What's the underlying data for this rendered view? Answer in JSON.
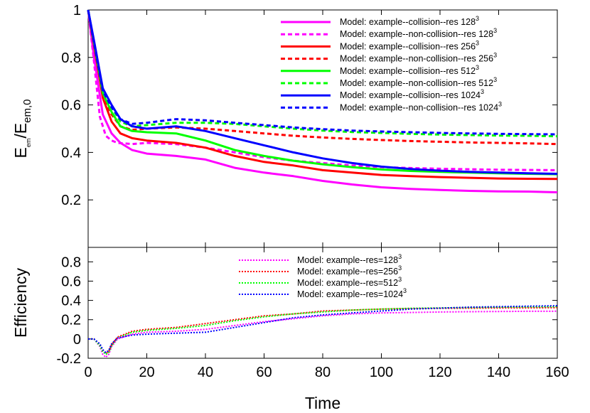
{
  "chart_data": [
    {
      "type": "line",
      "xlabel": "Time",
      "ylabel": "E_em/E_em,0",
      "ylabel_main": "E",
      "ylabel_sub1": "em",
      "ylabel_mid": "/E",
      "ylabel_sub2": "em,0",
      "xlim": [
        0,
        160
      ],
      "ylim": [
        0,
        1
      ],
      "xticks": [
        "0",
        "20",
        "40",
        "60",
        "80",
        "100",
        "120",
        "140",
        "160"
      ],
      "yticks": [
        "0.2",
        "0.4",
        "0.6",
        "0.8",
        "1"
      ],
      "ytick_values": [
        0.2,
        0.4,
        0.6,
        0.8,
        1.0
      ],
      "legend_position": "top-right",
      "series": [
        {
          "name": "Model: example--collision--res 128",
          "sup": "3",
          "color": "#ff00ff",
          "dash": "solid",
          "x": [
            0,
            2,
            5,
            8,
            11,
            15,
            20,
            30,
            40,
            50,
            60,
            70,
            80,
            90,
            100,
            110,
            120,
            130,
            140,
            150,
            160
          ],
          "y": [
            1.0,
            0.8,
            0.56,
            0.48,
            0.44,
            0.41,
            0.395,
            0.385,
            0.37,
            0.335,
            0.315,
            0.3,
            0.28,
            0.265,
            0.253,
            0.246,
            0.242,
            0.238,
            0.236,
            0.235,
            0.232
          ]
        },
        {
          "name": "Model: example--non-collision--res 128",
          "sup": "3",
          "color": "#ff00ff",
          "dash": "dashed",
          "x": [
            0,
            2,
            4,
            6,
            8,
            10,
            15,
            20,
            30,
            40,
            50,
            60,
            70,
            80,
            90,
            100,
            110,
            120,
            130,
            140,
            150,
            160
          ],
          "y": [
            1.0,
            0.78,
            0.55,
            0.47,
            0.45,
            0.44,
            0.435,
            0.44,
            0.435,
            0.42,
            0.4,
            0.38,
            0.365,
            0.355,
            0.345,
            0.338,
            0.334,
            0.331,
            0.329,
            0.327,
            0.326,
            0.325
          ]
        },
        {
          "name": "Model: example--collision--res 256",
          "sup": "3",
          "color": "#ff0000",
          "dash": "solid",
          "x": [
            0,
            2,
            5,
            8,
            11,
            15,
            20,
            30,
            40,
            50,
            60,
            70,
            80,
            90,
            100,
            110,
            120,
            130,
            140,
            150,
            160
          ],
          "y": [
            1.0,
            0.85,
            0.63,
            0.53,
            0.48,
            0.46,
            0.45,
            0.44,
            0.42,
            0.385,
            0.36,
            0.345,
            0.325,
            0.315,
            0.305,
            0.3,
            0.296,
            0.293,
            0.29,
            0.289,
            0.288
          ]
        },
        {
          "name": "Model: example--non-collision--res 256",
          "sup": "3",
          "color": "#ff0000",
          "dash": "dashed",
          "x": [
            0,
            2,
            5,
            8,
            11,
            15,
            20,
            30,
            40,
            50,
            60,
            70,
            80,
            90,
            100,
            110,
            120,
            130,
            140,
            150,
            160
          ],
          "y": [
            1.0,
            0.85,
            0.64,
            0.56,
            0.51,
            0.495,
            0.5,
            0.505,
            0.5,
            0.49,
            0.48,
            0.47,
            0.463,
            0.457,
            0.452,
            0.448,
            0.445,
            0.442,
            0.44,
            0.438,
            0.435
          ]
        },
        {
          "name": "Model: example--collision--res 512",
          "sup": "3",
          "color": "#00ff00",
          "dash": "solid",
          "x": [
            0,
            2,
            5,
            8,
            11,
            15,
            20,
            30,
            40,
            50,
            60,
            70,
            80,
            90,
            100,
            110,
            120,
            130,
            140,
            150,
            160
          ],
          "y": [
            1.0,
            0.86,
            0.65,
            0.57,
            0.51,
            0.49,
            0.485,
            0.48,
            0.45,
            0.41,
            0.385,
            0.365,
            0.35,
            0.338,
            0.328,
            0.322,
            0.318,
            0.315,
            0.312,
            0.31,
            0.308
          ]
        },
        {
          "name": "Model: example--non-collision--res 512",
          "sup": "3",
          "color": "#00ff00",
          "dash": "dashed",
          "x": [
            0,
            2,
            5,
            8,
            11,
            15,
            20,
            30,
            40,
            50,
            60,
            70,
            80,
            90,
            100,
            110,
            120,
            130,
            140,
            150,
            160
          ],
          "y": [
            1.0,
            0.86,
            0.66,
            0.59,
            0.53,
            0.51,
            0.515,
            0.525,
            0.525,
            0.52,
            0.51,
            0.5,
            0.492,
            0.486,
            0.482,
            0.478,
            0.475,
            0.473,
            0.471,
            0.47,
            0.468
          ]
        },
        {
          "name": "Model: example--collision--res 1024",
          "sup": "3",
          "color": "#0000ff",
          "dash": "solid",
          "x": [
            0,
            2,
            5,
            8,
            11,
            15,
            20,
            30,
            40,
            50,
            60,
            70,
            80,
            90,
            100,
            110,
            120,
            130,
            140,
            150,
            160
          ],
          "y": [
            1.0,
            0.87,
            0.67,
            0.6,
            0.54,
            0.51,
            0.5,
            0.51,
            0.49,
            0.46,
            0.43,
            0.4,
            0.375,
            0.355,
            0.34,
            0.33,
            0.323,
            0.318,
            0.315,
            0.312,
            0.31
          ]
        },
        {
          "name": "Model: example--non-collision--res 1024",
          "sup": "3",
          "color": "#0000ff",
          "dash": "dashed",
          "x": [
            0,
            2,
            5,
            8,
            11,
            15,
            20,
            30,
            40,
            50,
            60,
            70,
            80,
            90,
            100,
            110,
            120,
            130,
            140,
            150,
            160
          ],
          "y": [
            1.0,
            0.86,
            0.66,
            0.59,
            0.54,
            0.52,
            0.525,
            0.54,
            0.535,
            0.525,
            0.515,
            0.505,
            0.498,
            0.492,
            0.488,
            0.485,
            0.482,
            0.48,
            0.478,
            0.477,
            0.476
          ]
        }
      ]
    },
    {
      "type": "line",
      "xlabel": "Time",
      "ylabel": "Efficiency",
      "xlim": [
        0,
        160
      ],
      "ylim": [
        -0.2,
        0.95
      ],
      "xticks": [
        "0",
        "20",
        "40",
        "60",
        "80",
        "100",
        "120",
        "140",
        "160"
      ],
      "yticks": [
        "-0.2",
        "0",
        "0.2",
        "0.4",
        "0.6",
        "0.8"
      ],
      "ytick_values": [
        -0.2,
        0.0,
        0.2,
        0.4,
        0.6,
        0.8
      ],
      "legend_position": "top-center",
      "series": [
        {
          "name": "Model: example--res=128",
          "sup": "3",
          "color": "#ff00ff",
          "dash": "dotted",
          "x": [
            0,
            2,
            4,
            5,
            6,
            7,
            8,
            10,
            15,
            20,
            30,
            40,
            50,
            60,
            70,
            80,
            90,
            100,
            110,
            120,
            130,
            140,
            150,
            160
          ],
          "y": [
            0.0,
            0.0,
            -0.08,
            -0.16,
            -0.19,
            -0.16,
            -0.08,
            0.0,
            0.05,
            0.07,
            0.08,
            0.1,
            0.14,
            0.18,
            0.21,
            0.24,
            0.26,
            0.27,
            0.275,
            0.28,
            0.283,
            0.285,
            0.287,
            0.288
          ]
        },
        {
          "name": "Model: example--res=256",
          "sup": "3",
          "color": "#ff0000",
          "dash": "dotted",
          "x": [
            0,
            2,
            4,
            5,
            6,
            7,
            8,
            10,
            15,
            20,
            30,
            40,
            50,
            60,
            70,
            80,
            90,
            100,
            110,
            120,
            130,
            140,
            150,
            160
          ],
          "y": [
            0.0,
            0.0,
            -0.06,
            -0.12,
            -0.15,
            -0.13,
            -0.06,
            0.02,
            0.08,
            0.1,
            0.12,
            0.16,
            0.2,
            0.24,
            0.26,
            0.29,
            0.3,
            0.31,
            0.315,
            0.318,
            0.32,
            0.322,
            0.323,
            0.325
          ]
        },
        {
          "name": "Model: example--res=512",
          "sup": "3",
          "color": "#00ff00",
          "dash": "dotted",
          "x": [
            0,
            2,
            4,
            5,
            6,
            7,
            8,
            10,
            15,
            20,
            30,
            40,
            50,
            60,
            70,
            80,
            90,
            100,
            110,
            120,
            130,
            140,
            150,
            160
          ],
          "y": [
            0.0,
            0.0,
            -0.07,
            -0.13,
            -0.16,
            -0.14,
            -0.07,
            0.01,
            0.07,
            0.09,
            0.11,
            0.14,
            0.19,
            0.23,
            0.26,
            0.28,
            0.3,
            0.31,
            0.318,
            0.322,
            0.326,
            0.33,
            0.333,
            0.335
          ]
        },
        {
          "name": "Model: example--res=1024",
          "sup": "3",
          "color": "#0000ff",
          "dash": "dotted",
          "x": [
            0,
            2,
            4,
            5,
            6,
            7,
            8,
            10,
            15,
            20,
            30,
            40,
            50,
            60,
            70,
            80,
            90,
            100,
            110,
            120,
            130,
            140,
            150,
            160
          ],
          "y": [
            0.0,
            0.0,
            -0.05,
            -0.11,
            -0.14,
            -0.12,
            -0.05,
            0.01,
            0.04,
            0.05,
            0.06,
            0.07,
            0.12,
            0.17,
            0.22,
            0.25,
            0.27,
            0.29,
            0.31,
            0.32,
            0.33,
            0.335,
            0.34,
            0.345
          ]
        }
      ]
    }
  ]
}
